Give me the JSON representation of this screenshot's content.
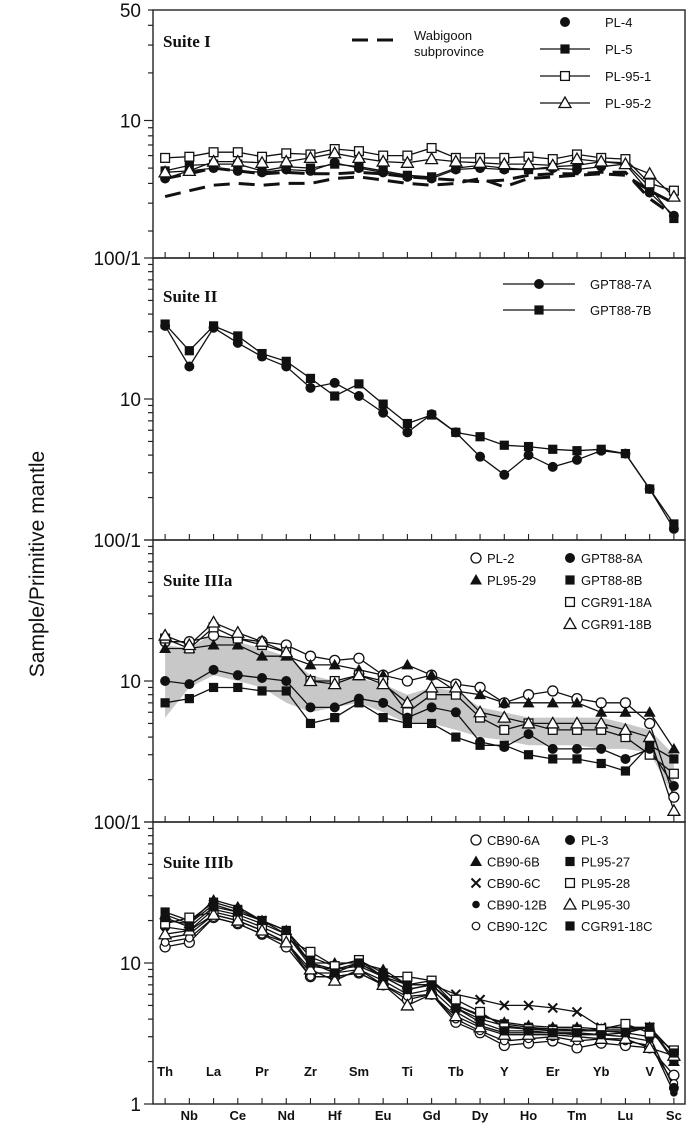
{
  "figure": {
    "ylabel": "Sample/Primitive mantle"
  },
  "elements": [
    "Th",
    "Nb",
    "La",
    "Ce",
    "Pr",
    "Nd",
    "Zr",
    "Hf",
    "Sm",
    "Eu",
    "Ti",
    "Gd",
    "Tb",
    "Dy",
    "Y",
    "Ho",
    "Er",
    "Tm",
    "Yb",
    "Lu",
    "V",
    "Sc"
  ],
  "colors": {
    "ink": "#111111",
    "band": "#c8c8c8",
    "frame": "#222222"
  },
  "chart_data": [
    {
      "type": "line",
      "title": "Suite I",
      "ylog": true,
      "ylim": [
        1.35,
        50
      ],
      "ytick_labels": [
        {
          "v": 50,
          "t": "50"
        },
        {
          "v": 10,
          "t": "10"
        }
      ],
      "series": [
        {
          "name": "PL-4",
          "marker": "filled-circle",
          "values": [
            4.3,
            4.8,
            5.0,
            4.8,
            4.7,
            4.9,
            4.8,
            5.4,
            5.0,
            4.7,
            4.4,
            4.3,
            4.9,
            5.0,
            4.9,
            4.9,
            5.0,
            4.9,
            5.1,
            5.3,
            3.5,
            2.5
          ]
        },
        {
          "name": "PL-5",
          "marker": "filled-square",
          "values": [
            4.8,
            5.2,
            5.3,
            5.3,
            4.8,
            5.1,
            5.0,
            5.3,
            5.1,
            4.8,
            4.5,
            4.4,
            5.0,
            5.2,
            5.0,
            4.9,
            5.1,
            5.2,
            5.5,
            5.4,
            3.8,
            2.4
          ]
        },
        {
          "name": "PL-95-1",
          "marker": "open-square",
          "values": [
            5.8,
            5.9,
            6.3,
            6.3,
            5.9,
            6.2,
            6.1,
            6.6,
            6.4,
            6.0,
            6.0,
            6.7,
            5.8,
            5.8,
            5.8,
            5.9,
            5.7,
            6.1,
            5.8,
            5.7,
            4.0,
            3.6
          ]
        },
        {
          "name": "PL-95-2",
          "marker": "open-triangle",
          "values": [
            4.7,
            4.8,
            5.5,
            5.5,
            5.4,
            5.5,
            5.8,
            6.2,
            5.8,
            5.5,
            5.4,
            5.7,
            5.5,
            5.4,
            5.3,
            5.3,
            5.2,
            5.7,
            5.5,
            5.3,
            4.6,
            3.3
          ]
        }
      ],
      "lines": [
        {
          "name": "Wabigoon subprovince",
          "label_lines": [
            "Wabigoon",
            "subprovince"
          ],
          "style": "dashed",
          "bands": [
            [
              4.3,
              4.6,
              5.0,
              4.8,
              4.6,
              4.7,
              4.6,
              4.6,
              4.7,
              4.6,
              4.4,
              4.3,
              4.2,
              4.1,
              4.2,
              4.5,
              4.6,
              4.6,
              4.7,
              4.7,
              3.2,
              2.5
            ],
            [
              3.3,
              3.6,
              3.9,
              4.0,
              3.9,
              4.0,
              4.0,
              4.3,
              4.4,
              4.2,
              4.0,
              3.9,
              4.0,
              4.3,
              3.8,
              4.3,
              4.4,
              4.5,
              4.6,
              4.5,
              3.6,
              3.0
            ]
          ]
        }
      ]
    },
    {
      "type": "line",
      "title": "Suite II",
      "ylog": true,
      "ylim": [
        1,
        100
      ],
      "ytick_labels": [
        {
          "v": 100,
          "t": "100/1"
        },
        {
          "v": 10,
          "t": "10"
        }
      ],
      "series": [
        {
          "name": "GPT88-7A",
          "marker": "filled-circle",
          "values": [
            33,
            17,
            32,
            25,
            20,
            17,
            12,
            13,
            10.5,
            8,
            5.8,
            7.8,
            5.8,
            3.9,
            2.9,
            4.0,
            3.3,
            3.7,
            4.3,
            4.1,
            2.3,
            1.2
          ]
        },
        {
          "name": "GPT88-7B",
          "marker": "filled-square",
          "values": [
            34,
            22,
            33,
            28,
            21,
            18.5,
            14,
            10.5,
            12.8,
            9.2,
            6.7,
            7.7,
            5.8,
            5.4,
            4.7,
            4.6,
            4.4,
            4.3,
            4.4,
            4.1,
            2.3,
            1.3
          ]
        }
      ]
    },
    {
      "type": "line",
      "title": "Suite IIIa",
      "ylog": true,
      "ylim": [
        1,
        100
      ],
      "ytick_labels": [
        {
          "v": 100,
          "t": "100/1"
        },
        {
          "v": 10,
          "t": "10"
        }
      ],
      "band": {
        "upper": [
          18,
          17,
          22,
          19,
          17,
          15,
          11,
          10,
          10.5,
          9.5,
          8,
          9,
          8.5,
          6.5,
          6,
          5.5,
          5.5,
          5.5,
          5.5,
          5,
          4.5,
          3
        ],
        "lower": [
          5.5,
          9,
          11,
          10,
          9,
          7,
          6,
          6.5,
          7,
          6,
          5,
          5,
          4.5,
          4,
          3.8,
          3.5,
          3.5,
          3.5,
          3.3,
          3.3,
          3.1,
          1.5
        ]
      },
      "series": [
        {
          "name": "PL-2",
          "marker": "open-circle",
          "values": [
            19,
            19,
            21,
            20,
            19,
            18,
            15,
            14,
            14.5,
            11,
            10,
            11,
            9.5,
            9,
            7,
            8,
            8.5,
            7.5,
            7,
            7,
            5,
            1.5
          ]
        },
        {
          "name": "PL95-29",
          "marker": "filled-triangle",
          "values": [
            17,
            17,
            18,
            18,
            15,
            15,
            13,
            13,
            12,
            11,
            13,
            11,
            8.5,
            8,
            7,
            7,
            7,
            7,
            6,
            6,
            6,
            3.3
          ]
        },
        {
          "name": "CGR91-18A",
          "marker": "open-square",
          "values": [
            20,
            17,
            24,
            20,
            18,
            16,
            10,
            10,
            11,
            10,
            6,
            8,
            8,
            5.5,
            4.5,
            5,
            4.5,
            4.5,
            4.5,
            4,
            3,
            2.2
          ]
        },
        {
          "name": "CGR91-18B",
          "marker": "open-triangle",
          "values": [
            21,
            18,
            26,
            22,
            19,
            16,
            10,
            9.5,
            11,
            9.5,
            7,
            9,
            9,
            6,
            5.5,
            5,
            5,
            5,
            5,
            4.5,
            4,
            1.2
          ]
        },
        {
          "name": "GPT88-8A",
          "marker": "filled-circle",
          "values": [
            10,
            9.5,
            12,
            11,
            10.5,
            10,
            6.5,
            6.5,
            7.5,
            7,
            5.5,
            6.5,
            6,
            3.7,
            3.4,
            4.2,
            3.3,
            3.3,
            3.3,
            2.8,
            3.3,
            1.8
          ]
        },
        {
          "name": "GPT88-8B",
          "marker": "filled-square",
          "values": [
            7,
            7.5,
            9,
            9,
            8.5,
            8.5,
            5,
            5.5,
            7,
            5.5,
            5,
            5,
            4,
            3.5,
            3.5,
            3,
            2.8,
            2.8,
            2.6,
            2.3,
            3.5,
            2.8
          ]
        }
      ]
    },
    {
      "type": "line",
      "title": "Suite IIIb",
      "ylog": true,
      "ylim": [
        1,
        100
      ],
      "ytick_labels": [
        {
          "v": 100,
          "t": "100/1"
        },
        {
          "v": 10,
          "t": "10"
        },
        {
          "v": 1,
          "t": "1"
        }
      ],
      "series": [
        {
          "name": "CB90-6A",
          "marker": "open-circle",
          "values": [
            13,
            14,
            21,
            19,
            16,
            13,
            8,
            8,
            8.5,
            7,
            5.5,
            6,
            3.8,
            3.2,
            2.6,
            2.7,
            2.8,
            2.5,
            2.7,
            2.6,
            2.5,
            1.6
          ]
        },
        {
          "name": "CB90-6B",
          "marker": "filled-triangle",
          "values": [
            22,
            19,
            28,
            25,
            20,
            17,
            10,
            10,
            10,
            9,
            7,
            7,
            5,
            4.2,
            3.8,
            3.6,
            3.5,
            3.5,
            3.4,
            3.4,
            3.5,
            2.0
          ]
        },
        {
          "name": "CB90-6C",
          "marker": "cross",
          "values": [
            20,
            19,
            26,
            23,
            20,
            16,
            10,
            9,
            10,
            8,
            7,
            7,
            6,
            5.5,
            5,
            5,
            4.8,
            4.5,
            3.5,
            3.5,
            3.5,
            2.3
          ]
        },
        {
          "name": "CB90-12B",
          "marker": "filled-circle-small",
          "values": [
            15,
            16,
            22,
            20,
            17,
            14,
            8.5,
            8.5,
            9,
            7.5,
            6,
            6.5,
            4.5,
            3.6,
            3.2,
            3.2,
            3.2,
            3.1,
            3.1,
            3.0,
            2.8,
            1.2
          ]
        },
        {
          "name": "CB90-12C",
          "marker": "open-circle-small",
          "values": [
            14,
            15,
            21,
            19,
            16,
            14,
            8,
            8,
            8.5,
            7,
            5.8,
            6,
            4,
            3.3,
            2.8,
            2.9,
            3.0,
            2.8,
            2.9,
            2.8,
            2.6,
            1.4
          ]
        },
        {
          "name": "PL-3",
          "marker": "filled-circle",
          "values": [
            18,
            17,
            24,
            22,
            19,
            16,
            9.5,
            9,
            9.5,
            8,
            6.5,
            7,
            4.8,
            4,
            3.6,
            3.4,
            3.4,
            3.3,
            3.3,
            3.2,
            3.0,
            1.3
          ]
        },
        {
          "name": "PL95-27",
          "marker": "filled-square",
          "values": [
            23,
            20,
            27,
            24,
            20,
            17,
            11,
            9.5,
            10.5,
            8.5,
            7,
            7.5,
            5,
            4.3,
            3.7,
            3.5,
            3.4,
            3.4,
            3.3,
            3.3,
            3.5,
            2.1
          ]
        },
        {
          "name": "PL95-28",
          "marker": "open-square",
          "values": [
            19,
            21,
            23,
            21,
            18,
            15,
            12,
            9.5,
            10.5,
            8,
            8,
            7.5,
            5.5,
            4.5,
            3.5,
            3.4,
            3.3,
            3.3,
            3.4,
            3.7,
            3.2,
            2.4
          ]
        },
        {
          "name": "PL95-30",
          "marker": "open-triangle",
          "values": [
            16,
            17,
            22,
            20,
            17,
            14,
            9,
            7.5,
            9,
            7,
            5,
            6,
            4.2,
            3.5,
            3.1,
            3.1,
            3.1,
            3.0,
            2.9,
            2.9,
            2.5,
            2.2
          ]
        },
        {
          "name": "CGR91-18C",
          "marker": "filled-square",
          "values": [
            21,
            18,
            25,
            23,
            20,
            17,
            10,
            8.5,
            10,
            8,
            6.5,
            7,
            4.8,
            3.8,
            3.3,
            3.3,
            3.2,
            3.2,
            3.1,
            3.2,
            3.5,
            2.3
          ]
        }
      ]
    }
  ]
}
